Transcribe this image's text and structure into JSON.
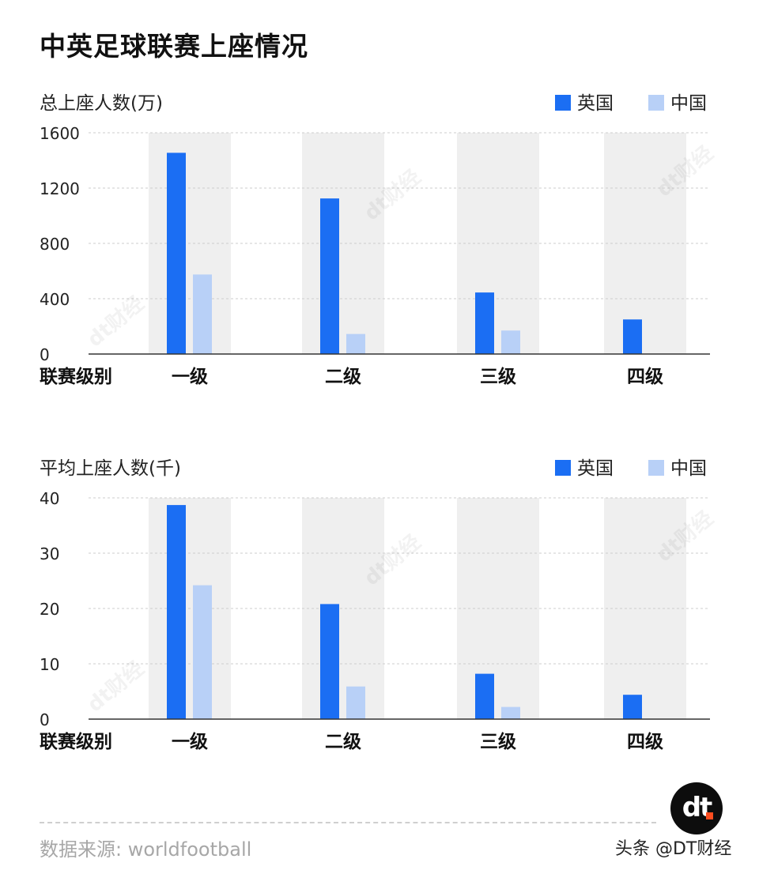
{
  "title": "中英足球联赛上座情况",
  "source": "数据来源: worldfootball",
  "watermark": "dt财经",
  "logo_text": "dt",
  "platform_label": "头条 @DT财经",
  "colors": {
    "uk": "#1b6ef3",
    "china": "#b8d0f7",
    "band": "#efefef",
    "grid": "#cccccc",
    "axis": "#333333"
  },
  "chart_data": [
    {
      "type": "bar",
      "ylabel": "总上座人数(万)",
      "xlabel": "联赛级别",
      "categories": [
        "一级",
        "二级",
        "三级",
        "四级"
      ],
      "ylim": [
        0,
        1600
      ],
      "yticks": [
        "0",
        "400",
        "800",
        "1200",
        "1600"
      ],
      "grid": true,
      "legend": "top-right",
      "series": [
        {
          "name": "英国",
          "values": [
            1455,
            1125,
            445,
            250
          ]
        },
        {
          "name": "中国",
          "values": [
            575,
            145,
            170,
            null
          ]
        }
      ]
    },
    {
      "type": "bar",
      "ylabel": "平均上座人数(千)",
      "xlabel": "联赛级别",
      "categories": [
        "一级",
        "二级",
        "三级",
        "四级"
      ],
      "ylim": [
        0,
        40
      ],
      "yticks": [
        "0",
        "10",
        "20",
        "30",
        "40"
      ],
      "grid": true,
      "legend": "top-right",
      "series": [
        {
          "name": "英国",
          "values": [
            38.7,
            20.8,
            8.2,
            4.4
          ]
        },
        {
          "name": "中国",
          "values": [
            24.2,
            5.9,
            2.2,
            null
          ]
        }
      ]
    }
  ]
}
